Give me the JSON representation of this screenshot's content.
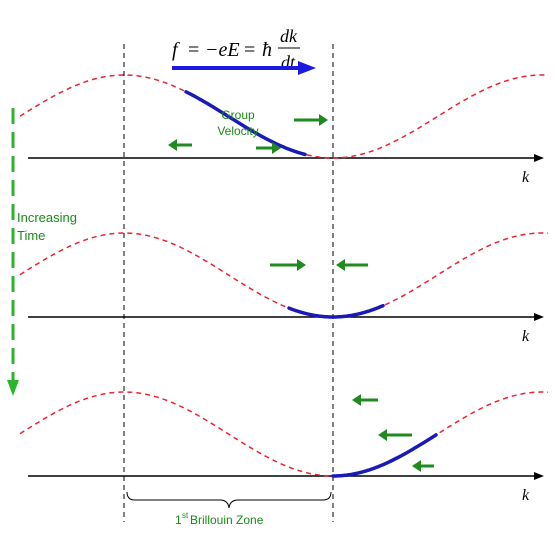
{
  "equation": {
    "f": "f",
    "eq1": "=",
    "minus_eE": "−eE",
    "eq2": "=",
    "hbar": "ħ",
    "dk": "dk",
    "dt": "dt"
  },
  "labels": {
    "group_velocity_line1": "Group",
    "group_velocity_line2": "Velocity",
    "increasing_time_line1": "Increasing",
    "increasing_time_line2": "Time",
    "k_axis": "k",
    "brillouin_superscript_prefix": "1",
    "brillouin_superscript": "st",
    "brillouin_rest": " Brillouin Zone"
  },
  "colors": {
    "band_dashed": "#ee2233",
    "wavepacket": "#1a1ab8",
    "arrow_green": "#1f8a1f",
    "text_green": "#1a8a1a",
    "axis": "#000000",
    "force_arrow": "#1a1ae0"
  }
}
